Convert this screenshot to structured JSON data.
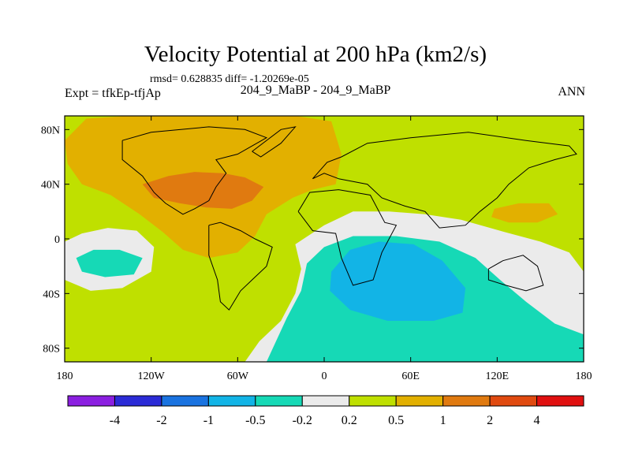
{
  "header": {
    "title": "Velocity Potential at 200 hPa (km2/s)",
    "stats": "rmsd= 0.628835 diff= -1.20269e-05",
    "experiment": "Expt = tfkEp-tfjAp",
    "cases": "204_9_MaBP - 204_9_MaBP",
    "season": "ANN"
  },
  "chart_data": {
    "type": "heatmap",
    "title": "Velocity Potential at 200 hPa (km2/s)",
    "units": "km2/s",
    "level": "200 hPa",
    "x_ticks": [
      "180",
      "120W",
      "60W",
      "0",
      "60E",
      "120E",
      "180"
    ],
    "x_tick_values": [
      -180,
      -120,
      -60,
      0,
      60,
      120,
      180
    ],
    "y_ticks": [
      "80N",
      "40N",
      "0",
      "40S",
      "80S"
    ],
    "y_tick_values": [
      80,
      40,
      0,
      -40,
      -80
    ],
    "xlim": [
      -180,
      180
    ],
    "ylim": [
      -90,
      90
    ],
    "contour_levels": [
      "-4",
      "-2",
      "-1",
      "-0.5",
      "-0.2",
      "0.2",
      "0.5",
      "1",
      "2",
      "4"
    ],
    "colorbar_colors": [
      "#8b1fe0",
      "#2b2bd6",
      "#1a73e0",
      "#12b4e6",
      "#16d9b6",
      "#ebebeb",
      "#bfe000",
      "#e2b000",
      "#e07a10",
      "#e04a10",
      "#e01010"
    ],
    "regions": [
      {
        "level": 0.5,
        "description": "broad positive area over North America / North Atlantic",
        "outline": [
          [
            -180,
            72
          ],
          [
            -165,
            88
          ],
          [
            -135,
            90
          ],
          [
            -100,
            90
          ],
          [
            -60,
            90
          ],
          [
            -20,
            90
          ],
          [
            5,
            86
          ],
          [
            12,
            62
          ],
          [
            8,
            40
          ],
          [
            -8,
            36
          ],
          [
            -22,
            30
          ],
          [
            -40,
            18
          ],
          [
            -48,
            2
          ],
          [
            -60,
            -10
          ],
          [
            -80,
            -14
          ],
          [
            -98,
            -8
          ],
          [
            -112,
            5
          ],
          [
            -128,
            18
          ],
          [
            -148,
            32
          ],
          [
            -168,
            40
          ],
          [
            -178,
            55
          ]
        ]
      },
      {
        "level": 1,
        "description": "core over central North America",
        "outline": [
          [
            -126,
            40
          ],
          [
            -108,
            46
          ],
          [
            -90,
            49
          ],
          [
            -70,
            48
          ],
          [
            -55,
            45
          ],
          [
            -42,
            38
          ],
          [
            -50,
            28
          ],
          [
            -64,
            22
          ],
          [
            -82,
            23
          ],
          [
            -100,
            26
          ],
          [
            -118,
            30
          ]
        ]
      },
      {
        "level": 0.5,
        "description": "small positive patch over Pacific near 150E",
        "outline": [
          [
            118,
            22
          ],
          [
            135,
            26
          ],
          [
            156,
            26
          ],
          [
            162,
            18
          ],
          [
            148,
            12
          ],
          [
            128,
            12
          ],
          [
            116,
            16
          ]
        ]
      },
      {
        "level": -0.2,
        "description": "negative area over Africa / Indian Ocean",
        "outline": [
          [
            -20,
            -4
          ],
          [
            0,
            10
          ],
          [
            20,
            20
          ],
          [
            45,
            20
          ],
          [
            70,
            18
          ],
          [
            95,
            14
          ],
          [
            125,
            5
          ],
          [
            150,
            -2
          ],
          [
            170,
            -10
          ],
          [
            180,
            -24
          ],
          [
            180,
            -90
          ],
          [
            -55,
            -90
          ],
          [
            -45,
            -75
          ],
          [
            -30,
            -60
          ],
          [
            -20,
            -40
          ],
          [
            -16,
            -22
          ]
        ]
      },
      {
        "level": -0.5,
        "description": "stronger negative core",
        "outline": [
          [
            -12,
            -18
          ],
          [
            0,
            -6
          ],
          [
            20,
            2
          ],
          [
            50,
            2
          ],
          [
            80,
            -2
          ],
          [
            105,
            -14
          ],
          [
            122,
            -30
          ],
          [
            140,
            -46
          ],
          [
            160,
            -62
          ],
          [
            180,
            -70
          ],
          [
            180,
            -90
          ],
          [
            -40,
            -90
          ],
          [
            -26,
            -58
          ],
          [
            -16,
            -38
          ]
        ]
      },
      {
        "level": -1,
        "description": "core over central Africa / Indian Ocean",
        "outline": [
          [
            5,
            -24
          ],
          [
            18,
            -8
          ],
          [
            38,
            -2
          ],
          [
            62,
            -4
          ],
          [
            82,
            -16
          ],
          [
            98,
            -36
          ],
          [
            96,
            -54
          ],
          [
            76,
            -60
          ],
          [
            44,
            -60
          ],
          [
            18,
            -52
          ],
          [
            4,
            -38
          ]
        ]
      },
      {
        "level": -0.2,
        "description": "small negative area in central South Pacific",
        "outline": [
          [
            -180,
            -2
          ],
          [
            -168,
            4
          ],
          [
            -150,
            8
          ],
          [
            -130,
            6
          ],
          [
            -118,
            -6
          ],
          [
            -120,
            -24
          ],
          [
            -140,
            -36
          ],
          [
            -162,
            -38
          ],
          [
            -180,
            -30
          ]
        ]
      },
      {
        "level": -0.5,
        "description": "weak core in central South Pacific",
        "outline": [
          [
            -172,
            -14
          ],
          [
            -160,
            -8
          ],
          [
            -142,
            -8
          ],
          [
            -126,
            -14
          ],
          [
            -132,
            -26
          ],
          [
            -152,
            -28
          ],
          [
            -168,
            -24
          ]
        ]
      }
    ]
  }
}
